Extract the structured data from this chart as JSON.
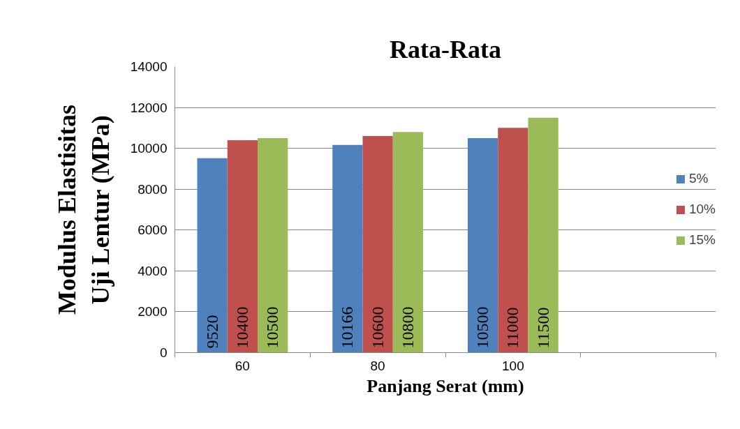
{
  "chart_data": {
    "type": "bar",
    "title": "Rata-Rata",
    "xlabel": "Panjang Serat (mm)",
    "ylabel": "Modulus Elastisitas\nUji Lentur (MPa)",
    "categories": [
      "60",
      "80",
      "100",
      null
    ],
    "series": [
      {
        "name": "5%",
        "color": "#4f81bd",
        "values": [
          9520,
          10166,
          10500,
          null
        ]
      },
      {
        "name": "10%",
        "color": "#c0504d",
        "values": [
          10400,
          10600,
          11000,
          null
        ]
      },
      {
        "name": "15%",
        "color": "#9bbb59",
        "values": [
          10500,
          10800,
          11500,
          null
        ]
      }
    ],
    "ylim": [
      0,
      14000
    ],
    "yticks": [
      0,
      2000,
      4000,
      6000,
      8000,
      10000,
      12000,
      14000
    ],
    "grid": "y",
    "legend": "right",
    "data_labels": true
  }
}
